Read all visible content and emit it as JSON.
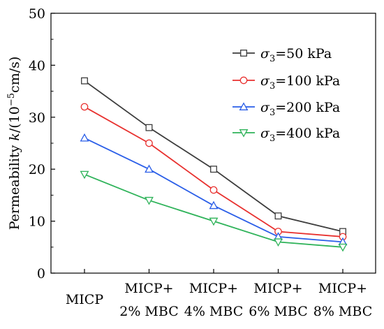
{
  "chart_data": {
    "type": "line",
    "ylabel": "Permeability k/(10",
    "ylabel_exp": "−5",
    "ylabel_tail": "cm/s)",
    "ylim": [
      0,
      50
    ],
    "yticks": [
      "0",
      "10",
      "20",
      "30",
      "40",
      "50"
    ],
    "categories": [
      [
        "MICP"
      ],
      [
        "MICP+",
        "2% MBC"
      ],
      [
        "MICP+",
        "4% MBC"
      ],
      [
        "MICP+",
        "6% MBC"
      ],
      [
        "MICP+",
        "8% MBC"
      ]
    ],
    "legend_position": "top-right",
    "series": [
      {
        "name": "σ",
        "sub": "3",
        "rest": "=50 kPa",
        "color": "#3d3d3d",
        "marker": "square",
        "values": [
          37,
          28,
          20,
          11,
          8
        ]
      },
      {
        "name": "σ",
        "sub": "3",
        "rest": "=100 kPa",
        "color": "#e8312f",
        "marker": "circle",
        "values": [
          32,
          25,
          16,
          8,
          7
        ]
      },
      {
        "name": "σ",
        "sub": "3",
        "rest": "=200 kPa",
        "color": "#2a5ee8",
        "marker": "triangle-up",
        "values": [
          26,
          20,
          13,
          7,
          6
        ]
      },
      {
        "name": "σ",
        "sub": "3",
        "rest": "=400 kPa",
        "color": "#2fb35a",
        "marker": "triangle-down",
        "values": [
          19,
          14,
          10,
          6,
          5
        ]
      }
    ]
  }
}
